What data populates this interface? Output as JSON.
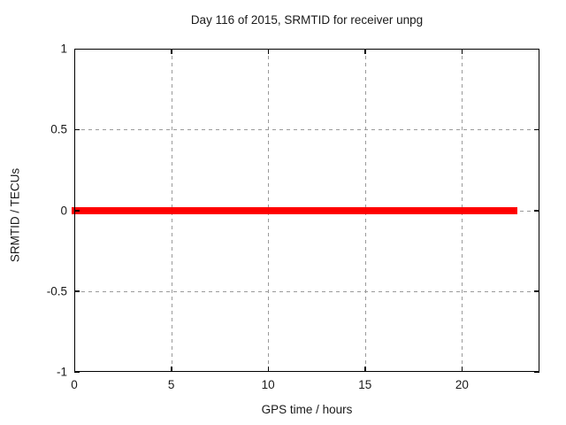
{
  "chart_data": {
    "type": "line",
    "title": "Day 116 of 2015, SRMTID for receiver unpg",
    "xlabel": "GPS time / hours",
    "ylabel": "SRMTID / TECUs",
    "xlim": [
      0,
      24
    ],
    "ylim": [
      -1,
      1
    ],
    "xticks": [
      0,
      5,
      10,
      15,
      20
    ],
    "yticks": [
      1,
      0.5,
      0,
      -0.5,
      -1
    ],
    "grid": true,
    "legend": "none",
    "colors": {
      "series": "#ff0000",
      "grid": "#9a9a9a",
      "border": "#000000",
      "text": "#1a1a1a",
      "background": "#ffffff"
    },
    "series": [
      {
        "name": "SRMTID",
        "color": "#ff0000",
        "y_value": 0,
        "x_start": 0,
        "x_end": 22.8,
        "thickness_px": 8
      }
    ]
  }
}
